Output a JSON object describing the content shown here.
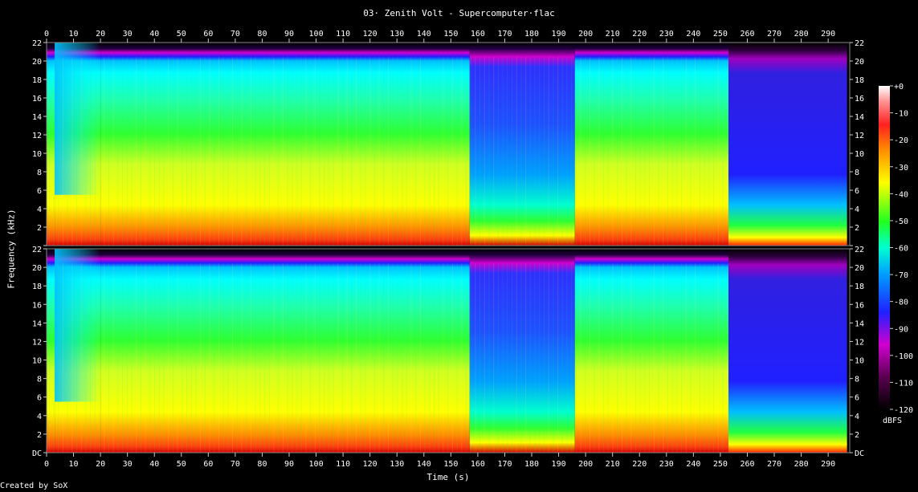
{
  "title": "03· Zenith Volt - Supercomputer·flac",
  "footer": "Created by SoX",
  "chart_data": {
    "type": "heatmap",
    "title": "03· Zenith Volt - Supercomputer·flac",
    "xlabel": "Time (s)",
    "ylabel": "Frequency (kHz)",
    "xlim": [
      0,
      298
    ],
    "x_ticks": [
      0,
      10,
      20,
      30,
      40,
      50,
      60,
      70,
      80,
      90,
      100,
      110,
      120,
      130,
      140,
      150,
      160,
      170,
      180,
      190,
      200,
      210,
      220,
      230,
      240,
      250,
      260,
      270,
      280,
      290
    ],
    "y_ticks": [
      "DC",
      "2",
      "4",
      "6",
      "8",
      "10",
      "12",
      "14",
      "16",
      "18",
      "20",
      "22"
    ],
    "ylim": [
      0,
      22
    ],
    "channels": 2,
    "colorbar": {
      "label": "dBFS",
      "ticks": [
        "+0",
        "-10",
        "-20",
        "-30",
        "-40",
        "-50",
        "-60",
        "-70",
        "-80",
        "-90",
        "-100",
        "-110",
        "-120"
      ],
      "range": [
        -120,
        0
      ]
    },
    "segments": [
      {
        "start": 0,
        "end": 3,
        "level": "loud-low"
      },
      {
        "start": 3,
        "end": 20,
        "level": "fade-in"
      },
      {
        "start": 20,
        "end": 157,
        "level": "full"
      },
      {
        "start": 157,
        "end": 196,
        "level": "sparse"
      },
      {
        "start": 196,
        "end": 253,
        "level": "full"
      },
      {
        "start": 253,
        "end": 297,
        "level": "decay"
      }
    ]
  },
  "colors": {
    "background": "#000000",
    "text": "#ffffff"
  }
}
